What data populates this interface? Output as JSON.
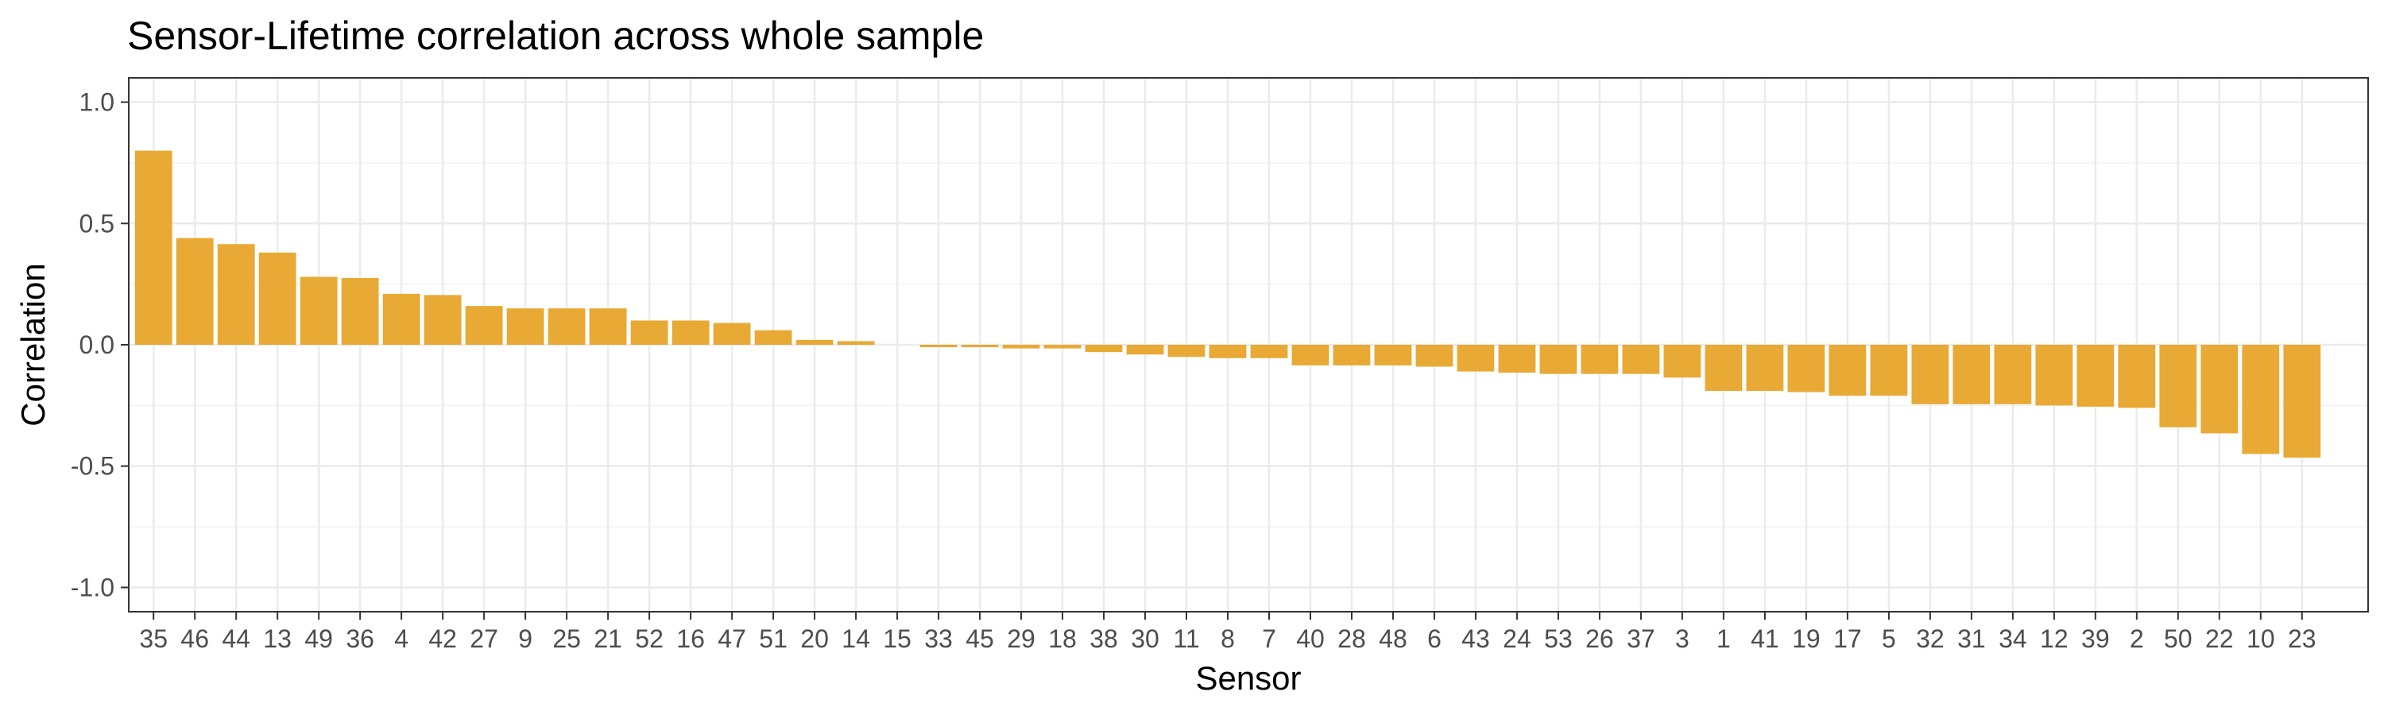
{
  "chart_data": {
    "type": "bar",
    "title": "Sensor-Lifetime correlation across whole sample",
    "xlabel": "Sensor",
    "ylabel": "Correlation",
    "ylim": [
      -1.1,
      1.1
    ],
    "yticks": [
      1.0,
      0.5,
      0.0,
      -0.5,
      -1.0
    ],
    "ytick_labels": [
      "1.0",
      "0.5",
      "0.0",
      "-0.5",
      "-1.0"
    ],
    "grid": true,
    "legend": "none",
    "bar_color": "#E8A935",
    "categories": [
      "35",
      "46",
      "44",
      "13",
      "49",
      "36",
      "4",
      "42",
      "27",
      "9",
      "25",
      "21",
      "52",
      "16",
      "47",
      "51",
      "20",
      "14",
      "15",
      "33",
      "45",
      "29",
      "18",
      "38",
      "30",
      "11",
      "8",
      "7",
      "40",
      "28",
      "48",
      "6",
      "43",
      "24",
      "53",
      "26",
      "37",
      "3",
      "1",
      "41",
      "19",
      "17",
      "5",
      "32",
      "31",
      "34",
      "12",
      "39",
      "2",
      "50",
      "22",
      "10",
      "23"
    ],
    "values": [
      0.8,
      0.44,
      0.415,
      0.38,
      0.28,
      0.275,
      0.21,
      0.205,
      0.16,
      0.15,
      0.15,
      0.15,
      0.1,
      0.1,
      0.09,
      0.06,
      0.02,
      0.015,
      0.0,
      -0.01,
      -0.01,
      -0.015,
      -0.015,
      -0.03,
      -0.04,
      -0.05,
      -0.055,
      -0.055,
      -0.085,
      -0.085,
      -0.085,
      -0.09,
      -0.11,
      -0.115,
      -0.12,
      -0.12,
      -0.12,
      -0.135,
      -0.19,
      -0.19,
      -0.195,
      -0.21,
      -0.21,
      -0.245,
      -0.245,
      -0.245,
      -0.25,
      -0.255,
      -0.26,
      -0.34,
      -0.365,
      -0.45,
      -0.465
    ]
  }
}
